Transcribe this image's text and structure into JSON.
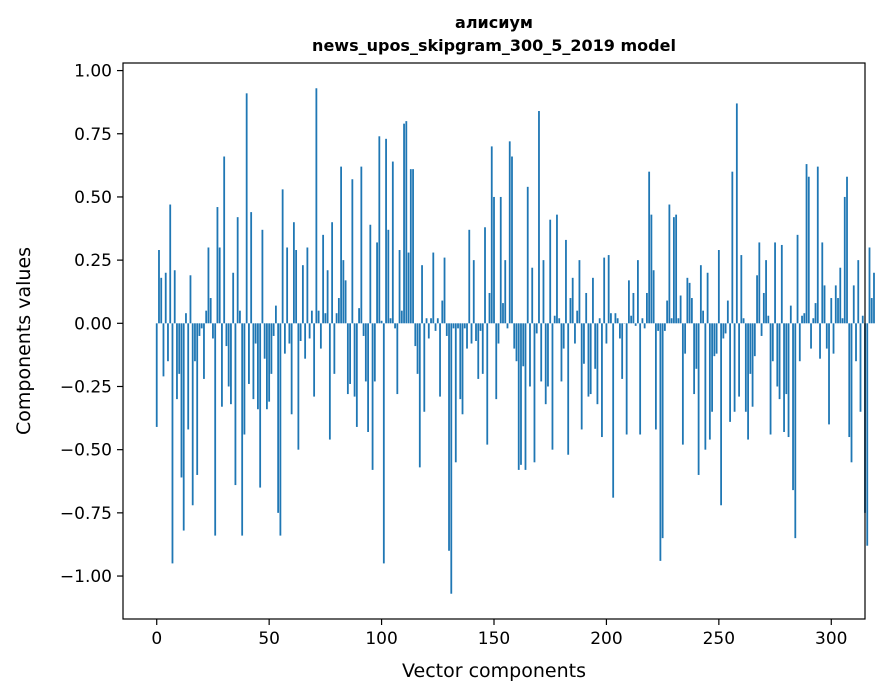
{
  "chart_data": {
    "type": "bar",
    "title": "алисиум",
    "subtitle": "news_upos_skipgram_300_5_2019 model",
    "xlabel": "Vector components",
    "ylabel": "Components values",
    "xlim": [
      -15,
      315
    ],
    "ylim": [
      -1.17,
      1.03
    ],
    "xticks": [
      0,
      50,
      100,
      150,
      200,
      250,
      300
    ],
    "xtick_labels": [
      "0",
      "50",
      "100",
      "150",
      "200",
      "250",
      "300"
    ],
    "yticks": [
      1.0,
      0.75,
      0.5,
      0.25,
      0.0,
      -0.25,
      -0.5,
      -0.75,
      -1.0
    ],
    "ytick_labels": [
      "1.00",
      "0.75",
      "0.50",
      "0.25",
      "0.00",
      "−0.25",
      "−0.50",
      "−0.75",
      "−1.00"
    ],
    "bar_color": "#1f77b4",
    "grid": false,
    "values": [
      -0.41,
      0.29,
      0.18,
      -0.21,
      0.2,
      -0.15,
      0.47,
      -0.95,
      0.21,
      -0.3,
      -0.2,
      -0.61,
      -0.82,
      0.04,
      -0.42,
      0.19,
      -0.72,
      -0.15,
      -0.6,
      -0.05,
      -0.02,
      -0.22,
      0.05,
      0.3,
      0.1,
      -0.06,
      -0.84,
      0.46,
      0.3,
      -0.33,
      0.66,
      -0.09,
      -0.25,
      -0.32,
      0.2,
      -0.64,
      0.42,
      0.05,
      -0.84,
      -0.44,
      0.91,
      -0.24,
      0.44,
      -0.3,
      -0.08,
      -0.34,
      -0.65,
      0.37,
      -0.14,
      -0.34,
      -0.31,
      -0.2,
      -0.05,
      0.07,
      -0.75,
      -0.84,
      0.53,
      -0.12,
      0.3,
      -0.08,
      -0.36,
      0.4,
      0.29,
      -0.5,
      -0.07,
      0.23,
      -0.14,
      0.3,
      -0.06,
      0.05,
      -0.29,
      0.93,
      0.05,
      -0.1,
      0.35,
      0.04,
      0.21,
      -0.46,
      0.4,
      -0.2,
      0.04,
      0.1,
      0.62,
      0.25,
      0.17,
      -0.28,
      -0.24,
      0.57,
      -0.29,
      -0.41,
      0.06,
      0.62,
      -0.05,
      -0.23,
      -0.43,
      0.39,
      -0.58,
      -0.23,
      0.32,
      0.74,
      0.01,
      -0.95,
      0.73,
      0.37,
      0.02,
      0.64,
      -0.02,
      -0.28,
      0.29,
      0.05,
      0.79,
      0.8,
      0.28,
      0.61,
      0.61,
      -0.09,
      -0.2,
      -0.57,
      0.23,
      -0.35,
      0.02,
      -0.06,
      0.02,
      0.28,
      -0.03,
      0.02,
      -0.29,
      0.09,
      0.26,
      -0.05,
      -0.9,
      -1.07,
      -0.02,
      -0.55,
      -0.02,
      -0.3,
      -0.36,
      -0.02,
      -0.1,
      0.37,
      -0.08,
      0.25,
      -0.07,
      -0.22,
      -0.03,
      -0.2,
      0.38,
      -0.48,
      0.12,
      0.7,
      0.5,
      -0.3,
      -0.08,
      0.5,
      0.08,
      0.25,
      -0.02,
      0.72,
      0.66,
      -0.1,
      -0.15,
      -0.58,
      -0.56,
      -0.17,
      -0.58,
      0.54,
      -0.25,
      0.22,
      -0.55,
      -0.04,
      0.84,
      -0.23,
      0.25,
      -0.32,
      -0.25,
      0.41,
      -0.5,
      0.03,
      0.43,
      0.02,
      -0.23,
      -0.1,
      0.33,
      -0.52,
      0.1,
      0.18,
      -0.08,
      0.05,
      0.25,
      -0.42,
      -0.16,
      0.12,
      -0.29,
      -0.28,
      0.18,
      -0.18,
      -0.32,
      0.02,
      -0.45,
      0.26,
      -0.08,
      0.27,
      0.04,
      -0.69,
      0.04,
      0.02,
      -0.06,
      -0.22,
      0.0,
      -0.44,
      0.17,
      0.03,
      0.12,
      -0.01,
      0.25,
      -0.44,
      0.02,
      -0.02,
      0.12,
      0.6,
      0.43,
      0.21,
      -0.42,
      -0.03,
      -0.94,
      -0.85,
      -0.03,
      0.09,
      0.47,
      0.02,
      0.42,
      0.43,
      0.02,
      0.11,
      -0.48,
      -0.12,
      0.18,
      0.16,
      0.1,
      -0.28,
      -0.18,
      -0.6,
      0.23,
      0.05,
      -0.5,
      0.2,
      -0.46,
      -0.35,
      -0.13,
      -0.12,
      0.29,
      -0.72,
      -0.06,
      -0.04,
      0.09,
      -0.39,
      0.6,
      -0.35,
      0.87,
      -0.29,
      0.27,
      0.02,
      -0.35,
      -0.46,
      -0.2,
      -0.33,
      -0.13,
      0.19,
      0.32,
      -0.05,
      0.12,
      0.25,
      0.03,
      -0.44,
      -0.15,
      0.32,
      -0.25,
      -0.3,
      0.31,
      -0.43,
      -0.28,
      -0.45,
      0.07,
      -0.66,
      -0.85,
      0.35,
      -0.15,
      0.03,
      0.04,
      0.63,
      0.58,
      -0.1,
      0.02,
      0.08,
      0.62,
      -0.14,
      0.32,
      0.15,
      -0.1,
      -0.4,
      0.1,
      -0.12,
      0.15,
      0.1,
      0.22,
      0.02,
      0.5,
      0.58,
      -0.45,
      -0.55,
      0.15,
      -0.15,
      0.25,
      -0.35,
      0.03,
      -0.75,
      -0.88,
      0.3,
      0.1,
      0.2
    ]
  }
}
